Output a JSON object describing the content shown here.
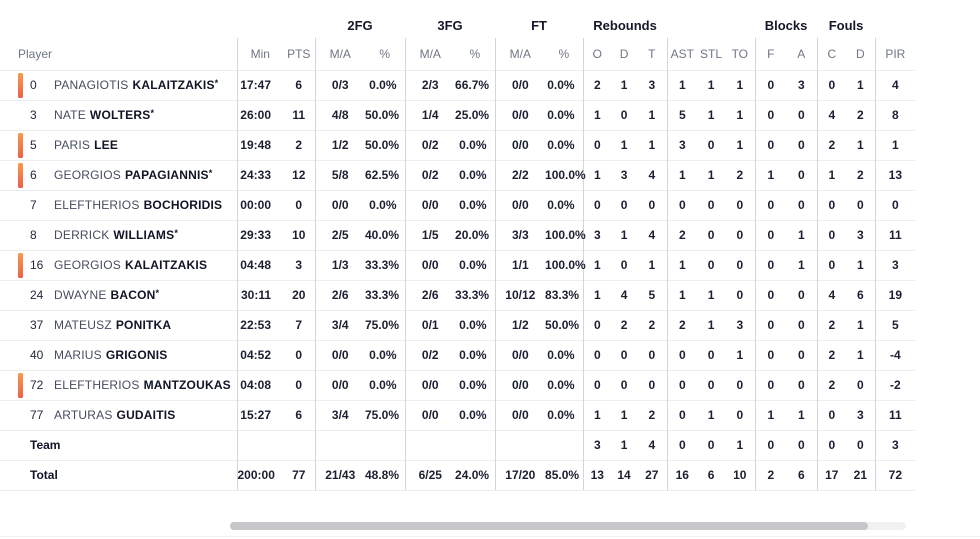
{
  "colors": {
    "on_court_bar_top": "#f79b4b",
    "on_court_bar_bottom": "#ed5f4b",
    "separator": "#d2d5da",
    "row_line": "#eaecef",
    "header_text": "#6f7684",
    "data_text": "#1b1f31"
  },
  "table": {
    "group_headers": [
      {
        "label": "",
        "span": 3
      },
      {
        "label": "2FG",
        "span": 2
      },
      {
        "label": "3FG",
        "span": 2
      },
      {
        "label": "FT",
        "span": 2
      },
      {
        "label": "Rebounds",
        "span": 3
      },
      {
        "label": "",
        "span": 3
      },
      {
        "label": "Blocks",
        "span": 2
      },
      {
        "label": "Fouls",
        "span": 2
      },
      {
        "label": "",
        "span": 1
      }
    ],
    "columns": [
      "Player",
      "Min",
      "PTS",
      "M/A",
      "%",
      "M/A",
      "%",
      "M/A",
      "%",
      "O",
      "D",
      "T",
      "AST",
      "STL",
      "TO",
      "F",
      "A",
      "C",
      "D",
      "PIR"
    ],
    "players": [
      {
        "number": "0",
        "first_name": "PANAGIOTIS",
        "last_name": "KALAITZAKIS",
        "starter": true,
        "on_court": true,
        "stats": [
          "17:47",
          "6",
          "0/3",
          "0.0%",
          "2/3",
          "66.7%",
          "0/0",
          "0.0%",
          "2",
          "1",
          "3",
          "1",
          "1",
          "1",
          "0",
          "3",
          "0",
          "1",
          "4"
        ]
      },
      {
        "number": "3",
        "first_name": "NATE",
        "last_name": "WOLTERS",
        "starter": true,
        "on_court": false,
        "stats": [
          "26:00",
          "11",
          "4/8",
          "50.0%",
          "1/4",
          "25.0%",
          "0/0",
          "0.0%",
          "1",
          "0",
          "1",
          "5",
          "1",
          "1",
          "0",
          "0",
          "4",
          "2",
          "8"
        ]
      },
      {
        "number": "5",
        "first_name": "PARIS",
        "last_name": "LEE",
        "starter": false,
        "on_court": true,
        "stats": [
          "19:48",
          "2",
          "1/2",
          "50.0%",
          "0/2",
          "0.0%",
          "0/0",
          "0.0%",
          "0",
          "1",
          "1",
          "3",
          "0",
          "1",
          "0",
          "0",
          "2",
          "1",
          "1"
        ]
      },
      {
        "number": "6",
        "first_name": "GEORGIOS",
        "last_name": "PAPAGIANNIS",
        "starter": true,
        "on_court": true,
        "stats": [
          "24:33",
          "12",
          "5/8",
          "62.5%",
          "0/2",
          "0.0%",
          "2/2",
          "100.0%",
          "1",
          "3",
          "4",
          "1",
          "1",
          "2",
          "1",
          "0",
          "1",
          "2",
          "13"
        ]
      },
      {
        "number": "7",
        "first_name": "ELEFTHERIOS",
        "last_name": "BOCHORIDIS",
        "starter": false,
        "on_court": false,
        "stats": [
          "00:00",
          "0",
          "0/0",
          "0.0%",
          "0/0",
          "0.0%",
          "0/0",
          "0.0%",
          "0",
          "0",
          "0",
          "0",
          "0",
          "0",
          "0",
          "0",
          "0",
          "0",
          "0"
        ]
      },
      {
        "number": "8",
        "first_name": "DERRICK",
        "last_name": "WILLIAMS",
        "starter": true,
        "on_court": false,
        "stats": [
          "29:33",
          "10",
          "2/5",
          "40.0%",
          "1/5",
          "20.0%",
          "3/3",
          "100.0%",
          "3",
          "1",
          "4",
          "2",
          "0",
          "0",
          "0",
          "1",
          "0",
          "3",
          "11"
        ]
      },
      {
        "number": "16",
        "first_name": "GEORGIOS",
        "last_name": "KALAITZAKIS",
        "starter": false,
        "on_court": true,
        "stats": [
          "04:48",
          "3",
          "1/3",
          "33.3%",
          "0/0",
          "0.0%",
          "1/1",
          "100.0%",
          "1",
          "0",
          "1",
          "1",
          "0",
          "0",
          "0",
          "1",
          "0",
          "1",
          "3"
        ]
      },
      {
        "number": "24",
        "first_name": "DWAYNE",
        "last_name": "BACON",
        "starter": true,
        "on_court": false,
        "stats": [
          "30:11",
          "20",
          "2/6",
          "33.3%",
          "2/6",
          "33.3%",
          "10/12",
          "83.3%",
          "1",
          "4",
          "5",
          "1",
          "1",
          "0",
          "0",
          "0",
          "4",
          "6",
          "19"
        ]
      },
      {
        "number": "37",
        "first_name": "MATEUSZ",
        "last_name": "PONITKA",
        "starter": false,
        "on_court": false,
        "stats": [
          "22:53",
          "7",
          "3/4",
          "75.0%",
          "0/1",
          "0.0%",
          "1/2",
          "50.0%",
          "0",
          "2",
          "2",
          "2",
          "1",
          "3",
          "0",
          "0",
          "2",
          "1",
          "5"
        ]
      },
      {
        "number": "40",
        "first_name": "MARIUS",
        "last_name": "GRIGONIS",
        "starter": false,
        "on_court": false,
        "stats": [
          "04:52",
          "0",
          "0/0",
          "0.0%",
          "0/2",
          "0.0%",
          "0/0",
          "0.0%",
          "0",
          "0",
          "0",
          "0",
          "0",
          "1",
          "0",
          "0",
          "2",
          "1",
          "-4"
        ]
      },
      {
        "number": "72",
        "first_name": "ELEFTHERIOS",
        "last_name": "MANTZOUKAS",
        "starter": false,
        "on_court": true,
        "stats": [
          "04:08",
          "0",
          "0/0",
          "0.0%",
          "0/0",
          "0.0%",
          "0/0",
          "0.0%",
          "0",
          "0",
          "0",
          "0",
          "0",
          "0",
          "0",
          "0",
          "2",
          "0",
          "-2"
        ]
      },
      {
        "number": "77",
        "first_name": "ARTURAS",
        "last_name": "GUDAITIS",
        "starter": false,
        "on_court": false,
        "stats": [
          "15:27",
          "6",
          "3/4",
          "75.0%",
          "0/0",
          "0.0%",
          "0/0",
          "0.0%",
          "1",
          "1",
          "2",
          "0",
          "1",
          "0",
          "1",
          "1",
          "0",
          "3",
          "11"
        ]
      }
    ],
    "team_row": {
      "label": "Team",
      "stats": [
        "",
        "",
        "",
        "",
        "",
        "",
        "",
        "",
        "3",
        "1",
        "4",
        "0",
        "0",
        "1",
        "0",
        "0",
        "0",
        "0",
        "3"
      ]
    },
    "total_row": {
      "label": "Total",
      "stats": [
        "200:00",
        "77",
        "21/43",
        "48.8%",
        "6/25",
        "24.0%",
        "17/20",
        "85.0%",
        "13",
        "14",
        "27",
        "16",
        "6",
        "10",
        "2",
        "6",
        "17",
        "21",
        "72"
      ]
    }
  }
}
